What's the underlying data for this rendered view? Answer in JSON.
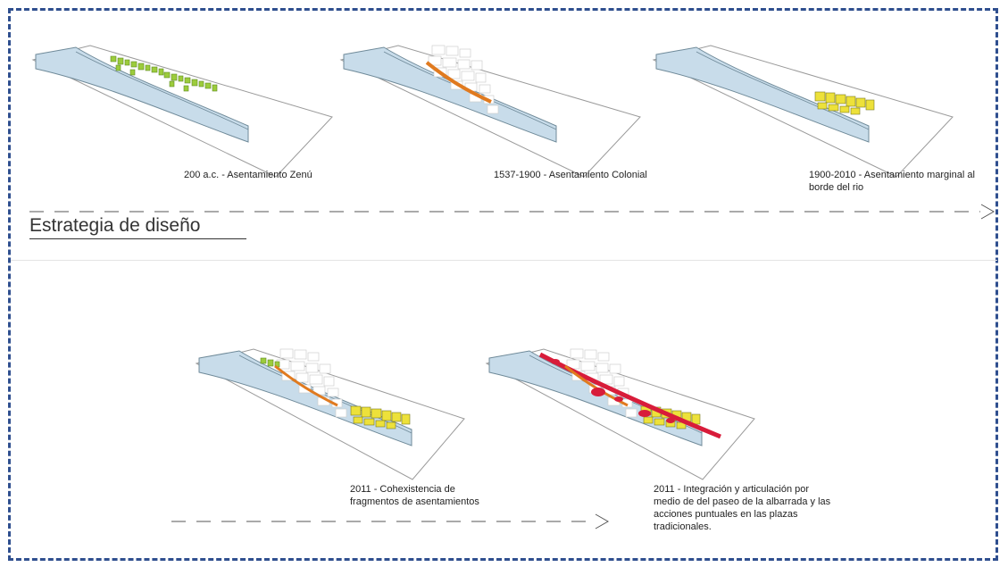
{
  "top_row": {
    "captions": [
      {
        "text": "200 a.c. - Asentamiento Zenú"
      },
      {
        "text": "1537-1900 - Asentamiento Colonial"
      },
      {
        "lines": [
          "1900-2010 - Asentamiento marginal al",
          "borde del rio"
        ]
      }
    ]
  },
  "heading": "Estrategia de diseño",
  "bottom_row": {
    "captions": [
      {
        "lines": [
          "2011 - Cohexistencia de",
          "fragmentos de asentamientos"
        ]
      },
      {
        "lines": [
          "2011 - Integración y articulación por",
          "medio de del paseo de la albarrada y las",
          "acciones puntuales en las plazas",
          "tradicionales."
        ]
      }
    ]
  },
  "colors": {
    "frame": "#2f4f8f",
    "river": "#c8dcea",
    "river_outline": "#6f8a99",
    "indigenous_settlement": "#9ccc3c",
    "colonial_waterfront": "#e07a1f",
    "marginal_settlement": "#ede13a",
    "intervention": "#d81c3a"
  }
}
